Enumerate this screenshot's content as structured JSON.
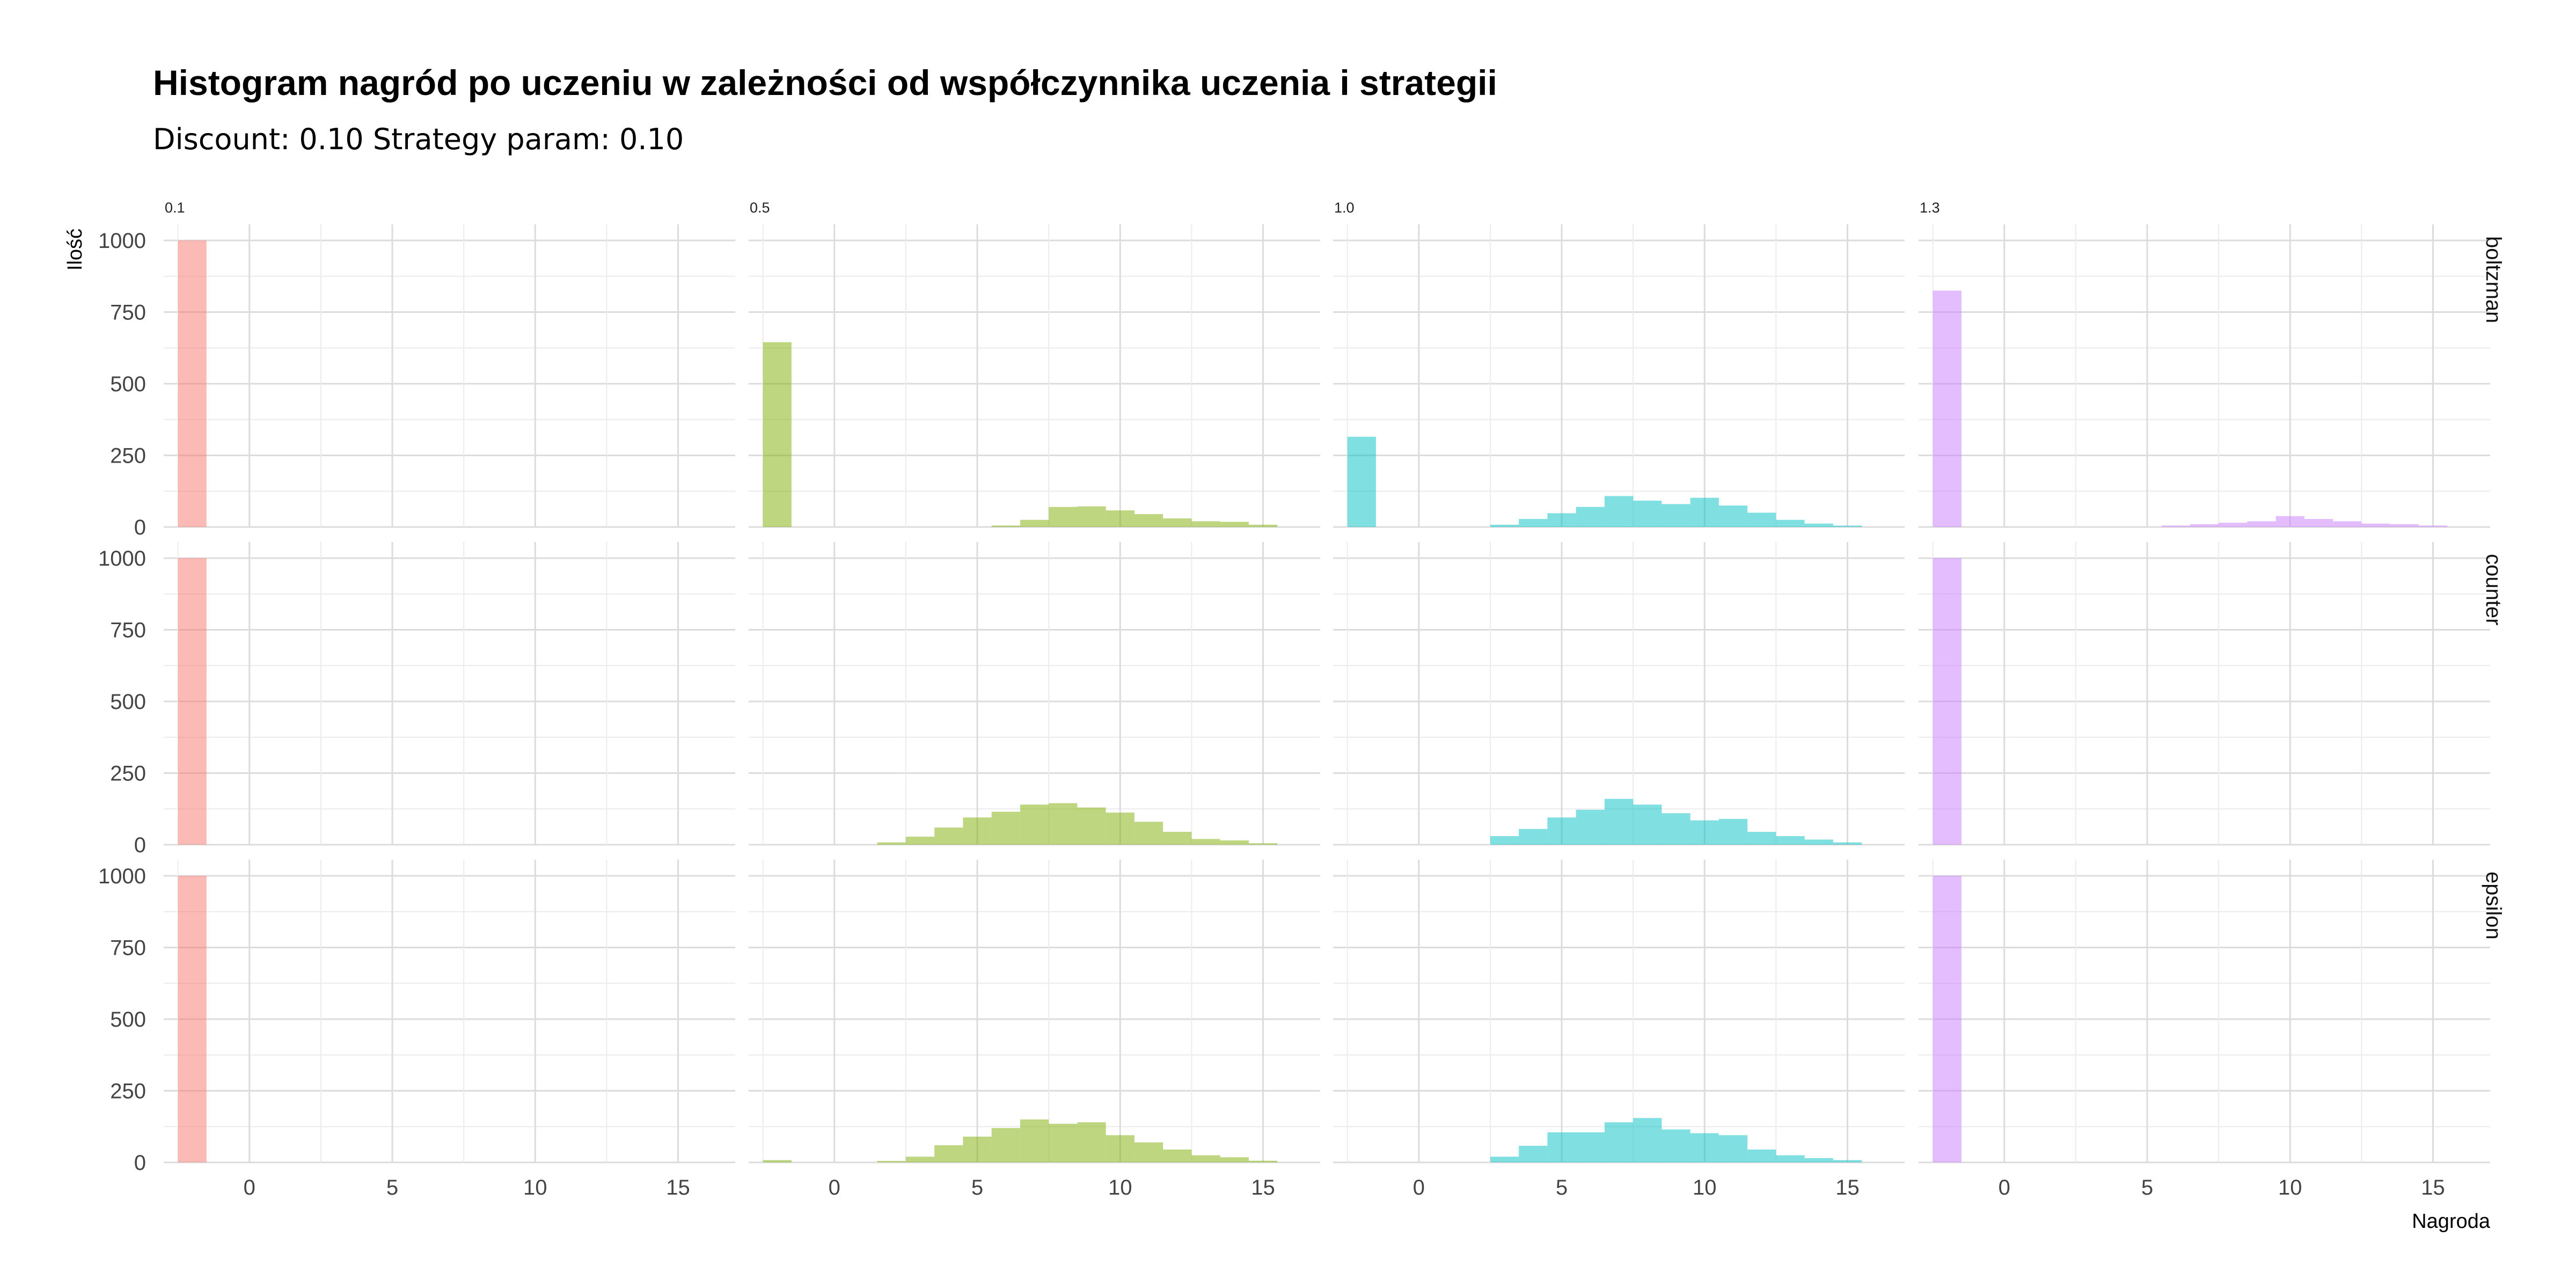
{
  "title": "Histogram nagród po uczeniu w zależności od współczynnika uczenia i strategii",
  "subtitle": "Discount: 0.10 Strategy param: 0.10",
  "chart_data": {
    "type": "bar",
    "subtype": "faceted histogram",
    "title": "Histogram nagród po uczeniu w zależności od współczynnika uczenia i strategii",
    "subtitle": "Discount: 0.10 Strategy param: 0.10",
    "xlabel": "Nagroda",
    "ylabel": "Ilość",
    "xlim": [
      -3,
      17
    ],
    "ylim": [
      0,
      1000
    ],
    "x_ticks": [
      0,
      5,
      10,
      15
    ],
    "y_ticks": [
      0,
      250,
      500,
      750,
      1000
    ],
    "bin_width": 1,
    "grid": true,
    "legend": "none",
    "column_facets": [
      "0.1",
      "0.5",
      "1.0",
      "1.3"
    ],
    "row_facets": [
      "boltzman",
      "counter",
      "epsilon"
    ],
    "colors": [
      "#F8766D",
      "#7CAE00",
      "#00BFC4",
      "#C77CFF"
    ],
    "opacity": 0.5,
    "panels": [
      {
        "column": "0.1",
        "row": "boltzman",
        "bins": [
          {
            "x": -2,
            "count": 1000
          }
        ]
      },
      {
        "column": "0.5",
        "row": "boltzman",
        "bins": [
          {
            "x": -2,
            "count": 645
          },
          {
            "x": 6,
            "count": 5
          },
          {
            "x": 7,
            "count": 25
          },
          {
            "x": 8,
            "count": 70
          },
          {
            "x": 9,
            "count": 72
          },
          {
            "x": 10,
            "count": 58
          },
          {
            "x": 11,
            "count": 45
          },
          {
            "x": 12,
            "count": 30
          },
          {
            "x": 13,
            "count": 20
          },
          {
            "x": 14,
            "count": 18
          },
          {
            "x": 15,
            "count": 8
          }
        ]
      },
      {
        "column": "1.0",
        "row": "boltzman",
        "bins": [
          {
            "x": -2,
            "count": 315
          },
          {
            "x": 3,
            "count": 8
          },
          {
            "x": 4,
            "count": 28
          },
          {
            "x": 5,
            "count": 48
          },
          {
            "x": 6,
            "count": 70
          },
          {
            "x": 7,
            "count": 108
          },
          {
            "x": 8,
            "count": 92
          },
          {
            "x": 9,
            "count": 80
          },
          {
            "x": 10,
            "count": 102
          },
          {
            "x": 11,
            "count": 75
          },
          {
            "x": 12,
            "count": 50
          },
          {
            "x": 13,
            "count": 25
          },
          {
            "x": 14,
            "count": 12
          },
          {
            "x": 15,
            "count": 5
          }
        ]
      },
      {
        "column": "1.3",
        "row": "boltzman",
        "bins": [
          {
            "x": -2,
            "count": 825
          },
          {
            "x": 6,
            "count": 5
          },
          {
            "x": 7,
            "count": 10
          },
          {
            "x": 8,
            "count": 15
          },
          {
            "x": 9,
            "count": 20
          },
          {
            "x": 10,
            "count": 38
          },
          {
            "x": 11,
            "count": 28
          },
          {
            "x": 12,
            "count": 20
          },
          {
            "x": 13,
            "count": 12
          },
          {
            "x": 14,
            "count": 10
          },
          {
            "x": 15,
            "count": 5
          }
        ]
      },
      {
        "column": "0.1",
        "row": "counter",
        "bins": [
          {
            "x": -2,
            "count": 1000
          }
        ]
      },
      {
        "column": "0.5",
        "row": "counter",
        "bins": [
          {
            "x": 2,
            "count": 8
          },
          {
            "x": 3,
            "count": 28
          },
          {
            "x": 4,
            "count": 60
          },
          {
            "x": 5,
            "count": 95
          },
          {
            "x": 6,
            "count": 115
          },
          {
            "x": 7,
            "count": 140
          },
          {
            "x": 8,
            "count": 145
          },
          {
            "x": 9,
            "count": 130
          },
          {
            "x": 10,
            "count": 112
          },
          {
            "x": 11,
            "count": 80
          },
          {
            "x": 12,
            "count": 45
          },
          {
            "x": 13,
            "count": 20
          },
          {
            "x": 14,
            "count": 15
          },
          {
            "x": 15,
            "count": 5
          }
        ]
      },
      {
        "column": "1.0",
        "row": "counter",
        "bins": [
          {
            "x": 3,
            "count": 30
          },
          {
            "x": 4,
            "count": 55
          },
          {
            "x": 5,
            "count": 95
          },
          {
            "x": 6,
            "count": 122
          },
          {
            "x": 7,
            "count": 160
          },
          {
            "x": 8,
            "count": 140
          },
          {
            "x": 9,
            "count": 110
          },
          {
            "x": 10,
            "count": 85
          },
          {
            "x": 11,
            "count": 90
          },
          {
            "x": 12,
            "count": 45
          },
          {
            "x": 13,
            "count": 30
          },
          {
            "x": 14,
            "count": 18
          },
          {
            "x": 15,
            "count": 8
          }
        ]
      },
      {
        "column": "1.3",
        "row": "counter",
        "bins": [
          {
            "x": -2,
            "count": 1000
          }
        ]
      },
      {
        "column": "0.1",
        "row": "epsilon",
        "bins": [
          {
            "x": -2,
            "count": 1000
          }
        ]
      },
      {
        "column": "0.5",
        "row": "epsilon",
        "bins": [
          {
            "x": -2,
            "count": 8
          },
          {
            "x": 2,
            "count": 5
          },
          {
            "x": 3,
            "count": 20
          },
          {
            "x": 4,
            "count": 60
          },
          {
            "x": 5,
            "count": 90
          },
          {
            "x": 6,
            "count": 120
          },
          {
            "x": 7,
            "count": 150
          },
          {
            "x": 8,
            "count": 135
          },
          {
            "x": 9,
            "count": 140
          },
          {
            "x": 10,
            "count": 95
          },
          {
            "x": 11,
            "count": 70
          },
          {
            "x": 12,
            "count": 45
          },
          {
            "x": 13,
            "count": 25
          },
          {
            "x": 14,
            "count": 18
          },
          {
            "x": 15,
            "count": 6
          }
        ]
      },
      {
        "column": "1.0",
        "row": "epsilon",
        "bins": [
          {
            "x": 3,
            "count": 20
          },
          {
            "x": 4,
            "count": 58
          },
          {
            "x": 5,
            "count": 105
          },
          {
            "x": 6,
            "count": 105
          },
          {
            "x": 7,
            "count": 140
          },
          {
            "x": 8,
            "count": 155
          },
          {
            "x": 9,
            "count": 115
          },
          {
            "x": 10,
            "count": 102
          },
          {
            "x": 11,
            "count": 95
          },
          {
            "x": 12,
            "count": 45
          },
          {
            "x": 13,
            "count": 25
          },
          {
            "x": 14,
            "count": 15
          },
          {
            "x": 15,
            "count": 8
          }
        ]
      },
      {
        "column": "1.3",
        "row": "epsilon",
        "bins": [
          {
            "x": -2,
            "count": 1000
          }
        ]
      }
    ]
  }
}
